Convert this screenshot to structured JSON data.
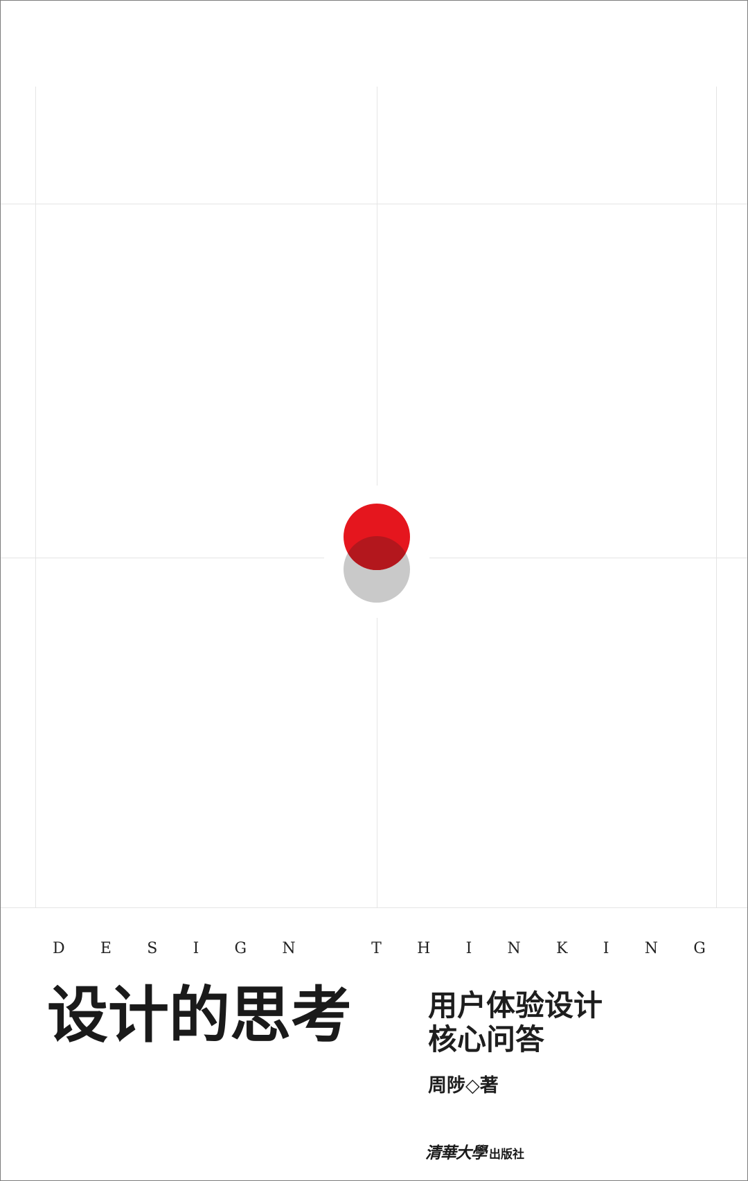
{
  "cover": {
    "english_title": "DESIGN THINKING",
    "title": "设计的思考",
    "subtitle_lines": [
      "用户体验设计",
      "核心问答"
    ],
    "author": "周陟◇著",
    "publisher": {
      "logo_text": "清華大學",
      "suffix": "出版社"
    }
  },
  "colors": {
    "accent_red": "#e5161e",
    "overlap_red": "#b3171d",
    "gray_dot": "#c9c9c9",
    "grid_line": "#e4e4e4"
  }
}
